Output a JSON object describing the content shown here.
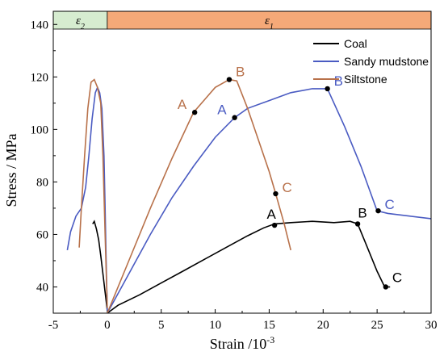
{
  "chart_data": {
    "type": "line",
    "xlabel_base": "Strain /10",
    "xlabel_exp": "-3",
    "ylabel": "Stress / MPa",
    "xlim": [
      -5,
      30
    ],
    "ylim": [
      30,
      145
    ],
    "xticks": [
      -5,
      0,
      5,
      10,
      15,
      20,
      25,
      30
    ],
    "yticks": [
      40,
      60,
      80,
      100,
      120,
      140
    ],
    "tick_labels_x": [
      "-5",
      "0",
      "5",
      "10",
      "15",
      "20",
      "25",
      "30"
    ],
    "tick_labels_y": [
      "40",
      "60",
      "80",
      "100",
      "120",
      "140"
    ],
    "bands": [
      {
        "label_symbol": "ε",
        "label_sub": "2",
        "x_range": [
          -5,
          0
        ],
        "color": "#d6ecd0"
      },
      {
        "label_symbol": "ε",
        "label_sub": "1",
        "x_range": [
          0,
          30
        ],
        "color": "#f5a978"
      }
    ],
    "legend": {
      "position": "top-right"
    },
    "series": [
      {
        "name": "Coal",
        "color": "#000000",
        "lateral": [
          [
            0,
            31
          ],
          [
            -0.2,
            38
          ],
          [
            -0.4,
            45
          ],
          [
            -0.6,
            52
          ],
          [
            -0.8,
            58
          ],
          [
            -1.0,
            62
          ],
          [
            -1.2,
            65
          ],
          [
            -1.35,
            64
          ]
        ],
        "axial": [
          [
            0,
            30
          ],
          [
            1,
            33
          ],
          [
            3,
            37
          ],
          [
            5,
            41.5
          ],
          [
            7,
            46
          ],
          [
            9,
            50.5
          ],
          [
            11,
            55
          ],
          [
            13,
            59.5
          ],
          [
            14.5,
            62.5
          ],
          [
            15.5,
            64
          ],
          [
            17,
            64.5
          ],
          [
            19,
            65
          ],
          [
            21,
            64.5
          ],
          [
            22.5,
            65
          ],
          [
            23.2,
            64
          ],
          [
            24,
            56
          ],
          [
            25,
            46
          ],
          [
            25.7,
            40
          ],
          [
            26.2,
            40
          ]
        ],
        "points": [
          {
            "label": "A",
            "x": 15.5,
            "y": 63.5
          },
          {
            "label": "B",
            "x": 23.2,
            "y": 64
          },
          {
            "label": "C",
            "x": 25.8,
            "y": 40
          }
        ]
      },
      {
        "name": "Sandy mudstone",
        "color": "#4a5bc2",
        "lateral": [
          [
            0,
            31
          ],
          [
            -0.1,
            50
          ],
          [
            -0.2,
            70
          ],
          [
            -0.3,
            90
          ],
          [
            -0.5,
            108
          ],
          [
            -0.7,
            114
          ],
          [
            -0.9,
            116
          ],
          [
            -1.1,
            114
          ],
          [
            -1.4,
            104
          ],
          [
            -1.7,
            90
          ],
          [
            -2.0,
            78
          ],
          [
            -2.4,
            70
          ],
          [
            -2.9,
            67
          ],
          [
            -3.4,
            61
          ],
          [
            -3.7,
            54
          ]
        ],
        "axial": [
          [
            0,
            30
          ],
          [
            2,
            45
          ],
          [
            4,
            60
          ],
          [
            6,
            74
          ],
          [
            8,
            86
          ],
          [
            10,
            97
          ],
          [
            11.8,
            104.5
          ],
          [
            13,
            108
          ],
          [
            15,
            111
          ],
          [
            17,
            114
          ],
          [
            19,
            115.5
          ],
          [
            20.4,
            115.5
          ],
          [
            22,
            101
          ],
          [
            23.5,
            86
          ],
          [
            25,
            69
          ],
          [
            26,
            68
          ],
          [
            28,
            67
          ],
          [
            30,
            66
          ]
        ],
        "points": [
          {
            "label": "A",
            "x": 11.8,
            "y": 104.5
          },
          {
            "label": "B",
            "x": 20.4,
            "y": 115.5
          },
          {
            "label": "C",
            "x": 25.1,
            "y": 69
          }
        ]
      },
      {
        "name": "Siltstone",
        "color": "#b8714a",
        "lateral": [
          [
            0,
            32
          ],
          [
            -0.2,
            60
          ],
          [
            -0.4,
            90
          ],
          [
            -0.6,
            110
          ],
          [
            -0.9,
            116
          ],
          [
            -1.2,
            119
          ],
          [
            -1.5,
            118
          ],
          [
            -1.8,
            108
          ],
          [
            -2.1,
            90
          ],
          [
            -2.4,
            70
          ],
          [
            -2.6,
            55
          ]
        ],
        "axial": [
          [
            0,
            30
          ],
          [
            2,
            50
          ],
          [
            4,
            70
          ],
          [
            6,
            89
          ],
          [
            8,
            106.5
          ],
          [
            10,
            116
          ],
          [
            11.3,
            119
          ],
          [
            12,
            118.5
          ],
          [
            13,
            108
          ],
          [
            14,
            96
          ],
          [
            15,
            84
          ],
          [
            15.6,
            75.5
          ],
          [
            16.4,
            64
          ],
          [
            17,
            54
          ]
        ],
        "points": [
          {
            "label": "A",
            "x": 8.1,
            "y": 106.5
          },
          {
            "label": "B",
            "x": 11.3,
            "y": 119
          },
          {
            "label": "C",
            "x": 15.6,
            "y": 75.5
          }
        ]
      }
    ]
  }
}
